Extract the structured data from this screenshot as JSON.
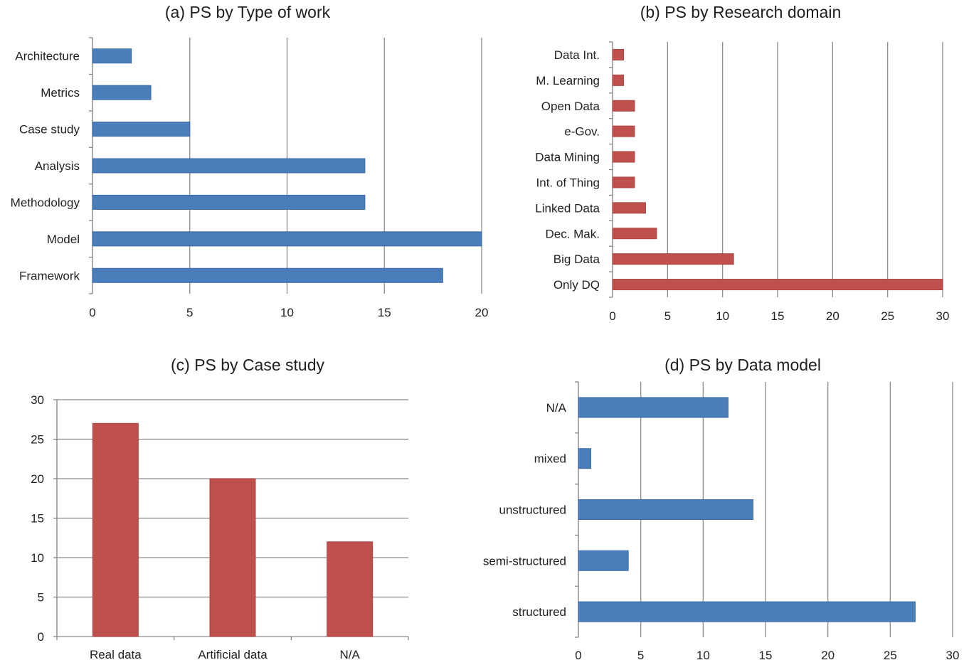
{
  "colors": {
    "blue": "#4a7ebb",
    "blue_edge": "#3b6aa6",
    "red": "#c0504d",
    "red_edge": "#a94542",
    "grid": "#8c8c8c",
    "axis": "#7f7f7f"
  },
  "chart_data": [
    {
      "id": "a",
      "type": "bar",
      "orientation": "horizontal",
      "title": "(a) PS by Type of work",
      "categories": [
        "Architecture",
        "Metrics",
        "Case study",
        "Analysis",
        "Methodology",
        "Model",
        "Framework"
      ],
      "values": [
        2,
        3,
        5,
        14,
        14,
        20,
        18
      ],
      "xlim": [
        0,
        20
      ],
      "xticks": [
        0,
        5,
        10,
        15,
        20
      ],
      "grid": true,
      "color": "blue"
    },
    {
      "id": "b",
      "type": "bar",
      "orientation": "horizontal",
      "title": "(b) PS by Research domain",
      "categories": [
        "Data Int.",
        "M. Learning",
        "Open Data",
        "e-Gov.",
        "Data Mining",
        "Int. of Thing",
        "Linked Data",
        "Dec. Mak.",
        "Big Data",
        "Only DQ"
      ],
      "values": [
        1,
        1,
        2,
        2,
        2,
        2,
        3,
        4,
        11,
        30
      ],
      "xlim": [
        0,
        30
      ],
      "xticks": [
        0,
        5,
        10,
        15,
        20,
        25,
        30
      ],
      "grid": true,
      "color": "red"
    },
    {
      "id": "c",
      "type": "bar",
      "orientation": "vertical",
      "title": "(c) PS by Case study",
      "categories": [
        "Real data",
        "Artificial data",
        "N/A"
      ],
      "values": [
        27,
        20,
        12
      ],
      "ylim": [
        0,
        30
      ],
      "yticks": [
        0,
        5,
        10,
        15,
        20,
        25,
        30
      ],
      "grid": true,
      "color": "red"
    },
    {
      "id": "d",
      "type": "bar",
      "orientation": "horizontal",
      "title": "(d) PS by Data model",
      "categories": [
        "N/A",
        "mixed",
        "unstructured",
        "semi-structured",
        "structured"
      ],
      "values": [
        12,
        1,
        14,
        4,
        27
      ],
      "xlim": [
        0,
        30
      ],
      "xticks": [
        0,
        5,
        10,
        15,
        20,
        25,
        30
      ],
      "grid": true,
      "color": "blue"
    }
  ]
}
